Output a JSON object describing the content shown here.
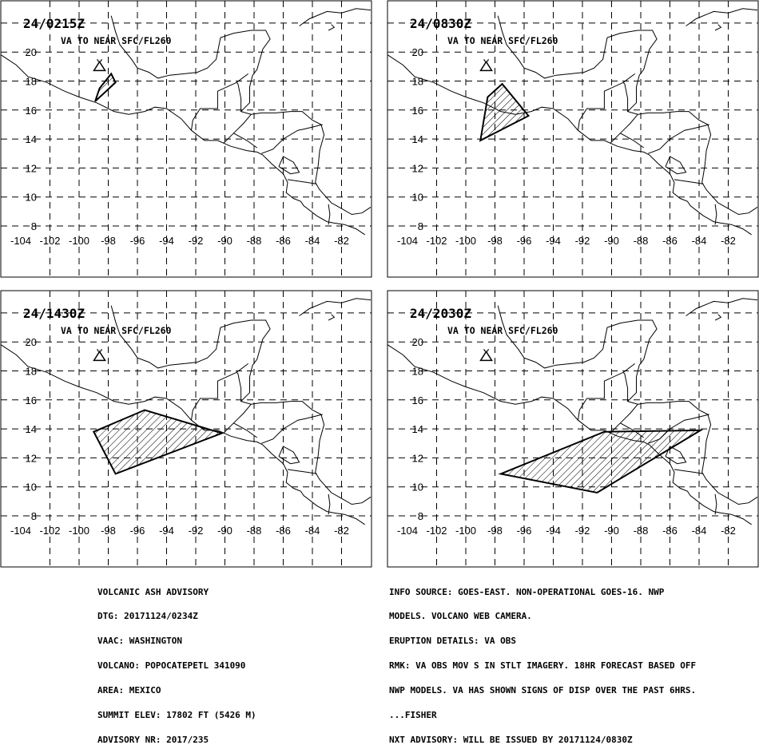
{
  "colors": {
    "background": "#ffffff",
    "ink": "#000000"
  },
  "map_extent": {
    "lon_min": -104,
    "lon_max": -80,
    "lat_min": 6,
    "lat_max": 23
  },
  "x_ticks": [
    -104,
    -102,
    -100,
    -98,
    -96,
    -94,
    -92,
    -90,
    -88,
    -86,
    -84,
    -82
  ],
  "y_ticks": [
    8,
    10,
    12,
    14,
    16,
    18,
    20
  ],
  "volcano": {
    "lon": -98.6,
    "lat": 19.0,
    "icon": "volcano-icon"
  },
  "panels": [
    {
      "time": "24/0215Z",
      "level_text": "VA TO NEAR SFC/FL260",
      "ash_polygon": [
        [
          -98.9,
          16.6
        ],
        [
          -98.6,
          17.5
        ],
        [
          -97.8,
          18.5
        ],
        [
          -97.5,
          17.9
        ],
        [
          -98.9,
          16.6
        ]
      ]
    },
    {
      "time": "24/0830Z",
      "level_text": "VA TO NEAR SFC/FL260",
      "ash_polygon": [
        [
          -98.5,
          16.9
        ],
        [
          -97.5,
          17.8
        ],
        [
          -95.7,
          15.6
        ],
        [
          -99.0,
          13.9
        ],
        [
          -98.5,
          16.9
        ]
      ]
    },
    {
      "time": "24/1430Z",
      "level_text": "VA TO NEAR SFC/FL260",
      "ash_polygon": [
        [
          -99.0,
          13.8
        ],
        [
          -95.5,
          15.3
        ],
        [
          -90.2,
          13.7
        ],
        [
          -97.5,
          10.9
        ],
        [
          -99.0,
          13.8
        ]
      ]
    },
    {
      "time": "24/2030Z",
      "level_text": "VA TO NEAR SFC/FL260",
      "ash_polygon": [
        [
          -97.6,
          10.9
        ],
        [
          -90.5,
          13.8
        ],
        [
          -83.9,
          13.9
        ],
        [
          -91.0,
          9.6
        ],
        [
          -97.6,
          10.9
        ]
      ]
    }
  ],
  "advisory": {
    "left_lines": [
      "VOLCANIC ASH ADVISORY",
      "DTG: 20171124/0234Z",
      "VAAC: WASHINGTON",
      "VOLCANO: POPOCATEPETL 341090",
      "AREA: MEXICO",
      "SUMMIT ELEV: 17802 FT (5426 M)",
      "ADVISORY NR: 2017/235"
    ],
    "right_lines": [
      "INFO SOURCE: GOES-EAST. NON-OPERATIONAL GOES-16. NWP",
      "MODELS. VOLCANO WEB CAMERA.",
      "ERUPTION DETAILS: VA OBS",
      "RMK: VA OBS MOV S IN STLT IMAGERY. 18HR FORECAST BASED OFF",
      "NWP MODELS. VA HAS SHOWN SIGNS OF DISP OVER THE PAST 6HRS.",
      "...FISHER",
      "NXT ADVISORY: WILL BE ISSUED BY 20171124/0830Z"
    ]
  }
}
